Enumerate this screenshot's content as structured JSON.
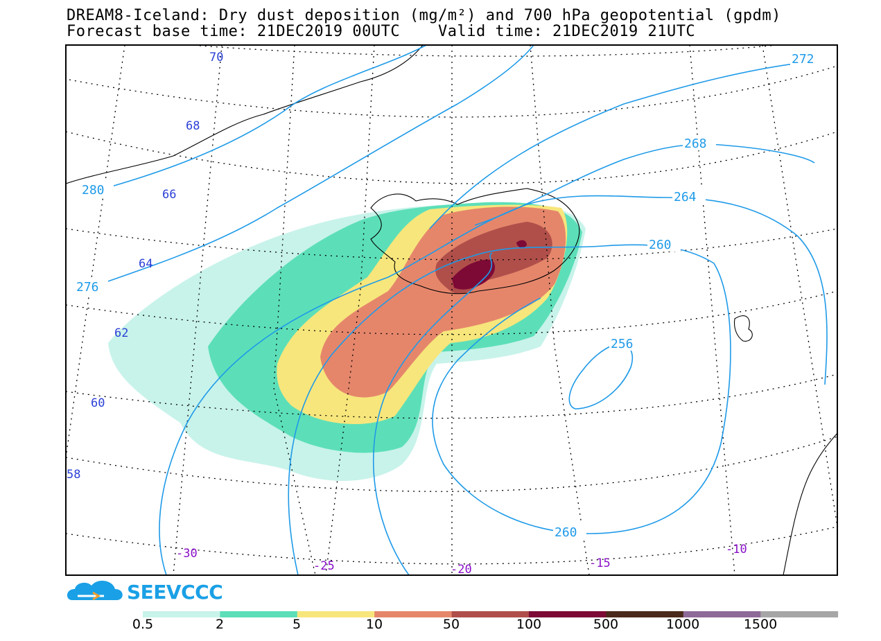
{
  "title": {
    "line1": "DREAM8-Iceland: Dry dust deposition (mg/m²) and 700 hPa geopotential (gpdm)",
    "line2": "Forecast base time: 21DEC2019 00UTC    Valid time: 21DEC2019 21UTC"
  },
  "map": {
    "latitude_labels": [
      "70",
      "68",
      "66",
      "64",
      "62",
      "60",
      "58"
    ],
    "longitude_labels": [
      "-30",
      "-25",
      "-20",
      "-15",
      "-10"
    ],
    "contour_labels": [
      "272",
      "268",
      "264",
      "260",
      "256",
      "260",
      "280",
      "276"
    ],
    "colors": {
      "frame": "#000000",
      "graticule": "#000000",
      "contour": "#1e9ae8",
      "lat_label": "#2a3fd6",
      "lon_label": "#8a10c8"
    }
  },
  "logo": {
    "text": "SEEVCCC",
    "icon": "cloud-logo-icon"
  },
  "legend": {
    "labels": [
      "0.5",
      "2",
      "5",
      "10",
      "50",
      "100",
      "500",
      "1000",
      "1500"
    ],
    "colors": [
      "#c8f3ea",
      "#5cdfb8",
      "#f7e67c",
      "#e5866b",
      "#b04f4a",
      "#7d0a35",
      "#4a2a1a",
      "#8e6a98",
      "#a6a6a6"
    ]
  }
}
